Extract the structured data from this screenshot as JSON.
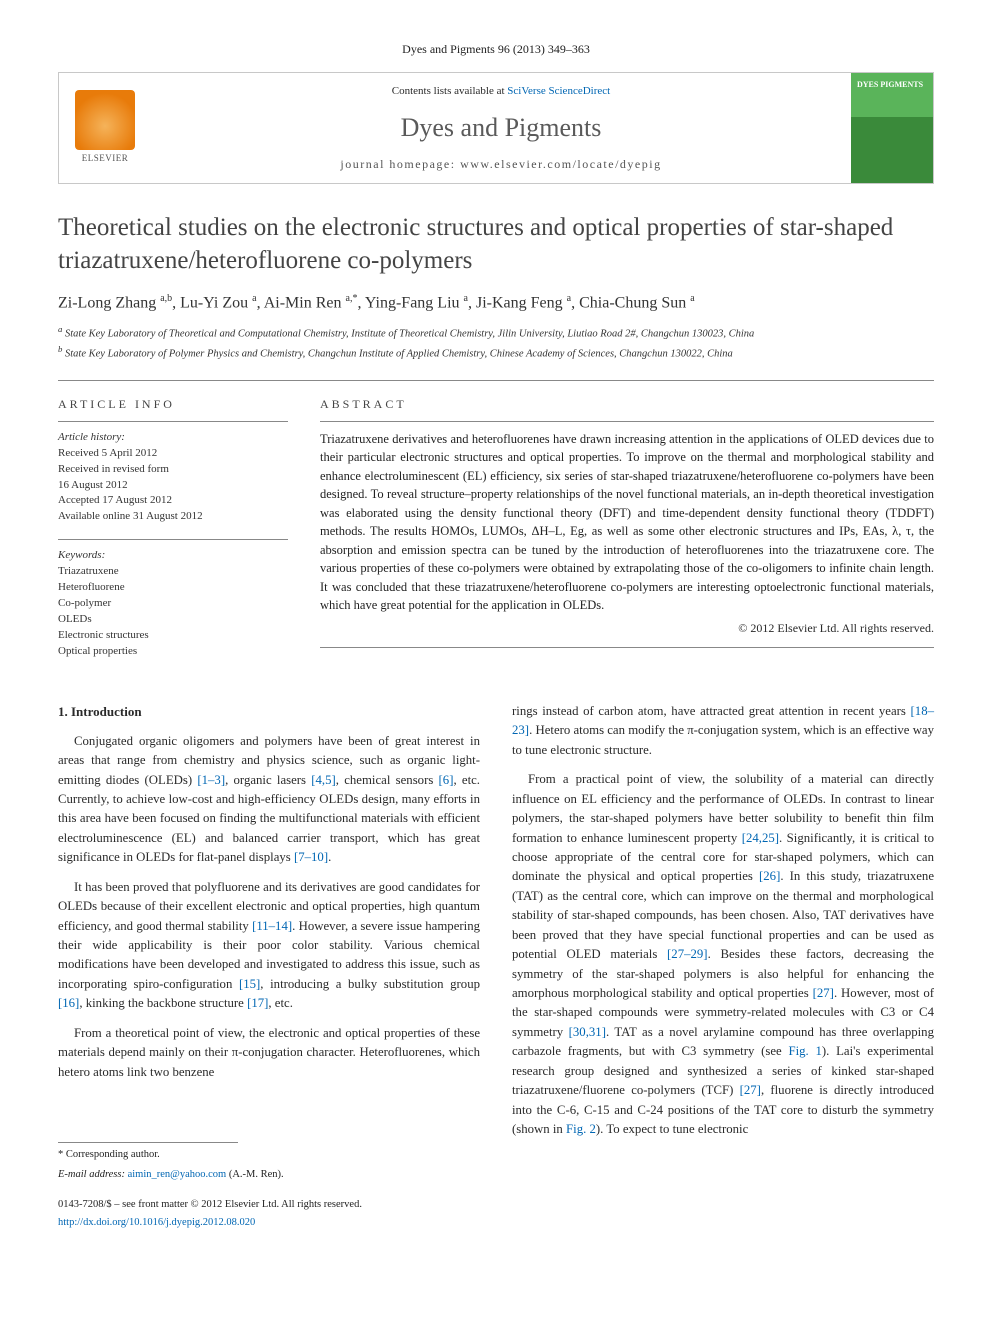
{
  "topCitation": "Dyes and Pigments 96 (2013) 349–363",
  "header": {
    "contentsPrefix": "Contents lists available at ",
    "contentsLink": "SciVerse ScienceDirect",
    "journalName": "Dyes and Pigments",
    "homepagePrefix": "journal homepage: ",
    "homepage": "www.elsevier.com/locate/dyepig",
    "publisherLabel": "ELSEVIER",
    "coverLabel": "DYES PIGMENTS"
  },
  "title": "Theoretical studies on the electronic structures and optical properties of star-shaped triazatruxene/heterofluorene co-polymers",
  "authorsHtml": "Zi-Long Zhang <sup>a,b</sup>, Lu-Yi Zou <sup>a</sup>, Ai-Min Ren <sup>a,*</sup>, Ying-Fang Liu <sup>a</sup>, Ji-Kang Feng <sup>a</sup>, Chia-Chung Sun <sup>a</sup>",
  "affiliations": {
    "a": "State Key Laboratory of Theoretical and Computational Chemistry, Institute of Theoretical Chemistry, Jilin University, Liutiao Road 2#, Changchun 130023, China",
    "b": "State Key Laboratory of Polymer Physics and Chemistry, Changchun Institute of Applied Chemistry, Chinese Academy of Sciences, Changchun 130022, China"
  },
  "articleInfo": {
    "head": "ARTICLE INFO",
    "historyHead": "Article history:",
    "history": [
      "Received 5 April 2012",
      "Received in revised form",
      "16 August 2012",
      "Accepted 17 August 2012",
      "Available online 31 August 2012"
    ],
    "keywordsHead": "Keywords:",
    "keywords": [
      "Triazatruxene",
      "Heterofluorene",
      "Co-polymer",
      "OLEDs",
      "Electronic structures",
      "Optical properties"
    ]
  },
  "abstract": {
    "head": "ABSTRACT",
    "text": "Triazatruxene derivatives and heterofluorenes have drawn increasing attention in the applications of OLED devices due to their particular electronic structures and optical properties. To improve on the thermal and morphological stability and enhance electroluminescent (EL) efficiency, six series of star-shaped triazatruxene/heterofluorene co-polymers have been designed. To reveal structure–property relationships of the novel functional materials, an in-depth theoretical investigation was elaborated using the density functional theory (DFT) and time-dependent density functional theory (TDDFT) methods. The results HOMOs, LUMOs, ΔH–L, Eg, as well as some other electronic structures and IPs, EAs, λ, τ, the absorption and emission spectra can be tuned by the introduction of heterofluorenes into the triazatruxene core. The various properties of these co-polymers were obtained by extrapolating those of the co-oligomers to infinite chain length. It was concluded that these triazatruxene/heterofluorene co-polymers are interesting optoelectronic functional materials, which have great potential for the application in OLEDs.",
    "copyright": "© 2012 Elsevier Ltd. All rights reserved."
  },
  "body": {
    "sectionHead": "1. Introduction",
    "left": [
      "Conjugated organic oligomers and polymers have been of great interest in areas that range from chemistry and physics science, such as organic light-emitting diodes (OLEDs) [1–3], organic lasers [4,5], chemical sensors [6], etc. Currently, to achieve low-cost and high-efficiency OLEDs design, many efforts in this area have been focused on finding the multifunctional materials with efficient electroluminescence (EL) and balanced carrier transport, which has great significance in OLEDs for flat-panel displays [7–10].",
      "It has been proved that polyfluorene and its derivatives are good candidates for OLEDs because of their excellent electronic and optical properties, high quantum efficiency, and good thermal stability [11–14]. However, a severe issue hampering their wide applicability is their poor color stability. Various chemical modifications have been developed and investigated to address this issue, such as incorporating spiro-configuration [15], introducing a bulky substitution group [16], kinking the backbone structure [17], etc.",
      "From a theoretical point of view, the electronic and optical properties of these materials depend mainly on their π-conjugation character. Heterofluorenes, which hetero atoms link two benzene"
    ],
    "right": [
      "rings instead of carbon atom, have attracted great attention in recent years [18–23]. Hetero atoms can modify the π-conjugation system, which is an effective way to tune electronic structure.",
      "From a practical point of view, the solubility of a material can directly influence on EL efficiency and the performance of OLEDs. In contrast to linear polymers, the star-shaped polymers have better solubility to benefit thin film formation to enhance luminescent property [24,25]. Significantly, it is critical to choose appropriate of the central core for star-shaped polymers, which can dominate the physical and optical properties [26]. In this study, triazatruxene (TAT) as the central core, which can improve on the thermal and morphological stability of star-shaped compounds, has been chosen. Also, TAT derivatives have been proved that they have special functional properties and can be used as potential OLED materials [27–29]. Besides these factors, decreasing the symmetry of the star-shaped polymers is also helpful for enhancing the amorphous morphological stability and optical properties [27]. However, most of the star-shaped compounds were symmetry-related molecules with C3 or C4 symmetry [30,31]. TAT as a novel arylamine compound has three overlapping carbazole fragments, but with C3 symmetry (see Fig. 1). Lai's experimental research group designed and synthesized a series of kinked star-shaped triazatruxene/fluorene co-polymers (TCF) [27], fluorene is directly introduced into the C-6, C-15 and C-24 positions of the TAT core to disturb the symmetry (shown in Fig. 2). To expect to tune electronic"
    ]
  },
  "footnote": {
    "corrLabel": "* Corresponding author.",
    "emailLabel": "E-mail address:",
    "email": "aimin_ren@yahoo.com",
    "emailTail": "(A.-M. Ren)."
  },
  "bottom": {
    "issn": "0143-7208/$ – see front matter © 2012 Elsevier Ltd. All rights reserved.",
    "doiLabel": "http://dx.doi.org/10.1016/j.dyepig.2012.08.020"
  },
  "refLinks": {
    "l1": "[1–3]",
    "l2": "[4,5]",
    "l3": "[6]",
    "l4": "[7–10]",
    "l5": "[11–14]",
    "l6": "[15]",
    "l7": "[16]",
    "l8": "[17]",
    "r1": "[18–23]",
    "r2": "[24,25]",
    "r3": "[26]",
    "r4": "[27–29]",
    "r5": "[27]",
    "r6": "[30,31]",
    "r7": "Fig. 1",
    "r8": "[27]",
    "r9": "Fig. 2"
  },
  "colors": {
    "link": "#0066b3",
    "text": "#2a2a2a",
    "muted": "#555555",
    "rule": "#888888",
    "coverTop": "#5ab45a",
    "coverBottom": "#3a8a3a",
    "elsevierOrange": "#e87b0a"
  },
  "typography": {
    "bodyFont": "Georgia, Times New Roman, serif",
    "titleSize": 25,
    "journalNameSize": 26,
    "bodySize": 12.8,
    "abstractSize": 12.5,
    "infoSize": 11,
    "footnoteSize": 10.5
  },
  "layout": {
    "pageWidth": 992,
    "pageHeight": 1323,
    "sidePaddingPx": 58,
    "columnGapPx": 32,
    "headerHeightPx": 112
  }
}
